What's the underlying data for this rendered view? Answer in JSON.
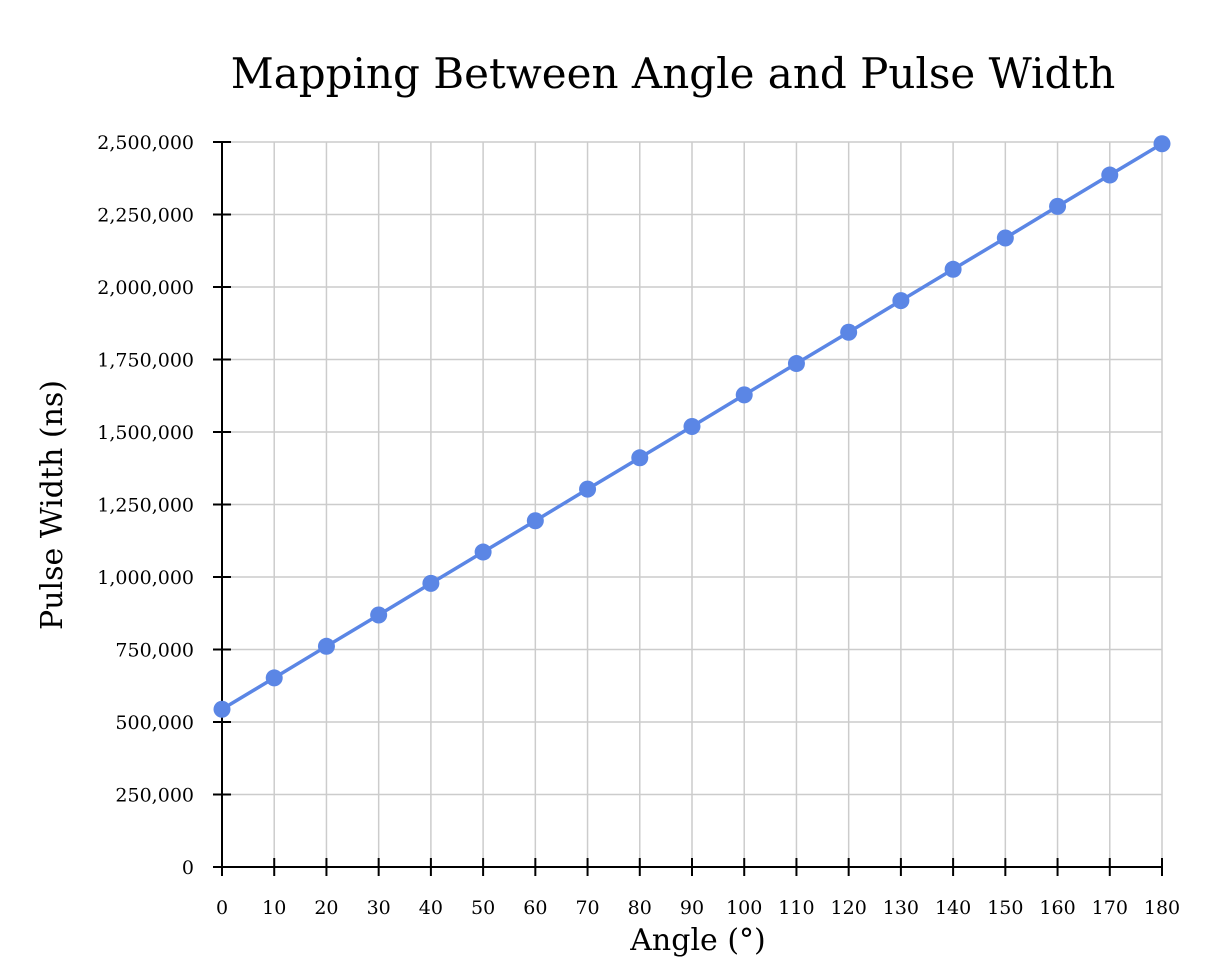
{
  "chart_data": {
    "type": "line",
    "title": "Mapping Between Angle and Pulse Width",
    "xlabel": "Angle (°)",
    "ylabel": "Pulse Width (ns)",
    "xlim": [
      0,
      180
    ],
    "ylim": [
      0,
      2500000
    ],
    "x_ticks": [
      0,
      10,
      20,
      30,
      40,
      50,
      60,
      70,
      80,
      90,
      100,
      110,
      120,
      130,
      140,
      150,
      160,
      170,
      180
    ],
    "x_tick_labels": [
      "0",
      "10",
      "20",
      "30",
      "40",
      "50",
      "60",
      "70",
      "80",
      "90",
      "100",
      "110",
      "120",
      "130",
      "140",
      "150",
      "160",
      "170",
      "180"
    ],
    "y_ticks": [
      0,
      250000,
      500000,
      750000,
      1000000,
      1250000,
      1500000,
      1750000,
      2000000,
      2250000,
      2500000
    ],
    "y_tick_labels": [
      "0",
      "250,000",
      "500,000",
      "750,000",
      "1,000,000",
      "1,250,000",
      "1,500,000",
      "1,750,000",
      "2,000,000",
      "2,250,000",
      "2,500,000"
    ],
    "grid": true,
    "legend": "none",
    "series": [
      {
        "color": "#5b86e5",
        "x": [
          0,
          10,
          20,
          30,
          40,
          50,
          60,
          70,
          80,
          90,
          100,
          110,
          120,
          130,
          140,
          150,
          160,
          170,
          180
        ],
        "y": [
          544000,
          652000,
          761000,
          869000,
          978000,
          1086000,
          1194000,
          1303000,
          1411000,
          1519000,
          1628000,
          1736000,
          1844000,
          1953000,
          2061000,
          2169000,
          2278000,
          2386000,
          2494000
        ]
      }
    ]
  }
}
